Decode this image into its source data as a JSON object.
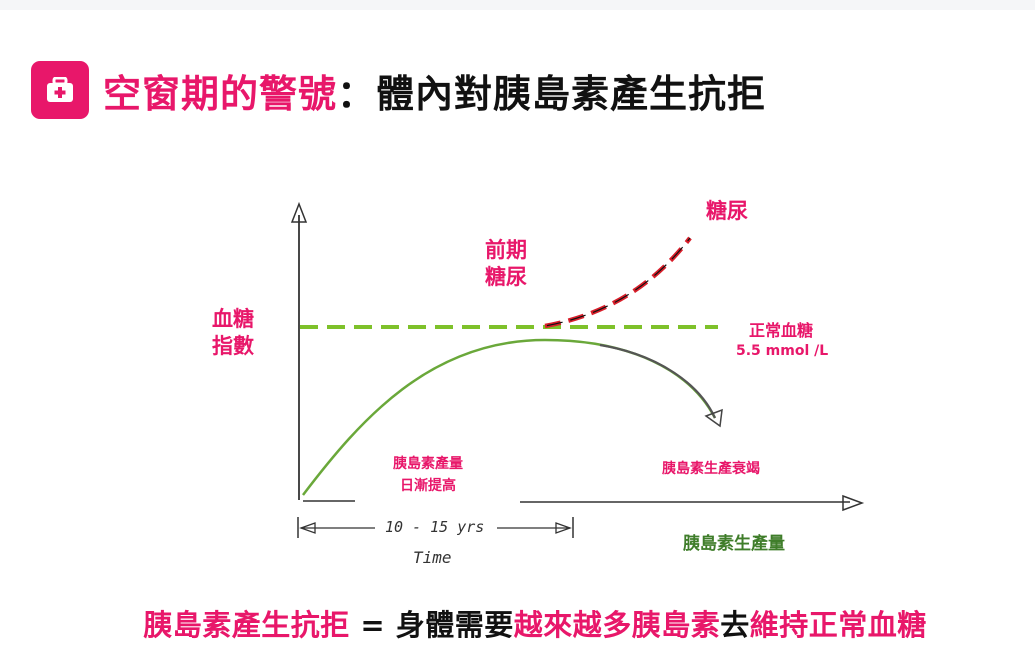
{
  "header": {
    "title_highlight": "空窗期的警號",
    "title_rest": "：體內對胰島素產生抗拒"
  },
  "diagram": {
    "y_axis_label": "血糖\n指數",
    "diabetes_label": "糖尿",
    "prediabetes_label": "前期\n糖尿",
    "normal_label": "正常血糖",
    "normal_value": "5.5 mmol /L",
    "insulin_rising_label": "胰島素產量\n日漸提高",
    "insulin_failing_label": "胰島素生產衰竭",
    "duration_label": "10 - 15 yrs",
    "time_label": "Time",
    "insulin_production_label": "胰島素生產量"
  },
  "footer": {
    "part1": "胰島素產生抗拒",
    "part2": " = 身體需要",
    "part3": "越來越多胰島素",
    "part4": "去",
    "part5": "維持正常血糖"
  },
  "colors": {
    "accent": "#e8176a",
    "normal_line": "#7ec12a",
    "diabetes_line": "#d81e2a",
    "insulin_curve": "#6aa83a",
    "insulin_curve_dark": "#555555"
  }
}
